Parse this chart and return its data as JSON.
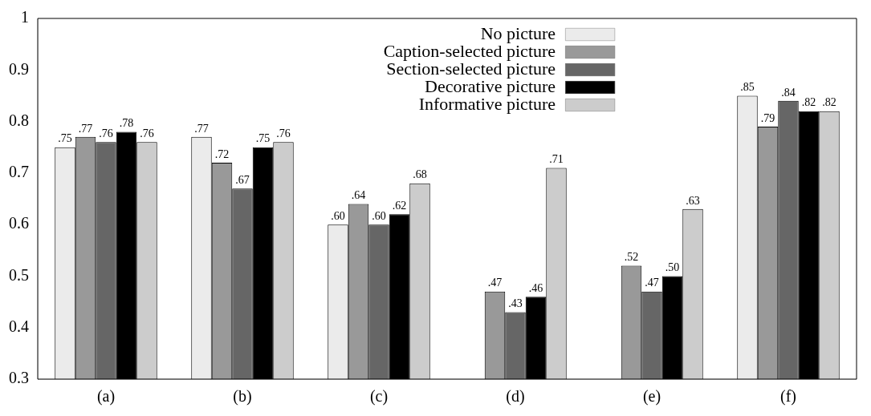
{
  "chart_data": {
    "type": "bar",
    "categories": [
      "(a)",
      "(b)",
      "(c)",
      "(d)",
      "(e)",
      "(f)"
    ],
    "series": [
      {
        "name": "No picture",
        "color": "#ebebeb",
        "values": [
          0.75,
          0.77,
          0.6,
          null,
          null,
          0.85
        ],
        "value_labels": [
          ".75",
          ".77",
          ".60",
          null,
          null,
          ".85"
        ]
      },
      {
        "name": "Caption-selected picture",
        "color": "#999999",
        "values": [
          0.77,
          0.72,
          0.64,
          0.47,
          0.52,
          0.79
        ],
        "value_labels": [
          ".77",
          ".72",
          ".64",
          ".47",
          ".52",
          ".79"
        ]
      },
      {
        "name": "Section-selected picture",
        "color": "#666666",
        "values": [
          0.76,
          0.67,
          0.6,
          0.43,
          0.47,
          0.84
        ],
        "value_labels": [
          ".76",
          ".67",
          ".60",
          ".43",
          ".47",
          ".84"
        ]
      },
      {
        "name": "Decorative picture",
        "color": "#000000",
        "values": [
          0.78,
          0.75,
          0.62,
          0.46,
          0.5,
          0.82
        ],
        "value_labels": [
          ".78",
          ".75",
          ".62",
          ".46",
          ".50",
          ".82"
        ]
      },
      {
        "name": "Informative picture",
        "color": "#cccccc",
        "values": [
          0.76,
          0.76,
          0.68,
          0.71,
          0.63,
          0.82
        ],
        "value_labels": [
          ".76",
          ".76",
          ".68",
          ".71",
          ".63",
          ".82"
        ]
      }
    ],
    "ylim": [
      0.3,
      1
    ],
    "yticks": [
      0.3,
      0.4,
      0.5,
      0.6,
      0.7,
      0.8,
      0.9,
      1
    ],
    "grid": false,
    "legend": "top right"
  }
}
